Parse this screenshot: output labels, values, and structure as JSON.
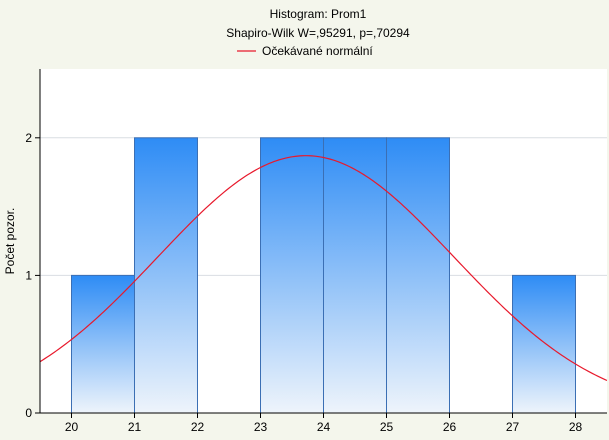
{
  "chart_data": {
    "type": "bar",
    "title": "Histogram: Prom1",
    "subtitle": "Shapiro-Wilk W=,95291, p=,70294",
    "xlabel": "",
    "ylabel": "Počet pozor.",
    "legend": {
      "placement": "top",
      "entries": [
        {
          "name": "Očekávané normální",
          "color": "#e8192c"
        }
      ]
    },
    "xlim": [
      19.5,
      28.5
    ],
    "ylim": [
      0,
      2.5
    ],
    "x_ticks": [
      20,
      21,
      22,
      23,
      24,
      25,
      26,
      27,
      28
    ],
    "y_ticks": [
      0,
      1,
      2
    ],
    "grid": true,
    "bins": [
      {
        "from": 20,
        "to": 21,
        "count": 1
      },
      {
        "from": 21,
        "to": 22,
        "count": 2
      },
      {
        "from": 22,
        "to": 23,
        "count": 0
      },
      {
        "from": 23,
        "to": 24,
        "count": 2
      },
      {
        "from": 24,
        "to": 25,
        "count": 2
      },
      {
        "from": 25,
        "to": 26,
        "count": 2
      },
      {
        "from": 26,
        "to": 27,
        "count": 0
      },
      {
        "from": 27,
        "to": 28,
        "count": 1
      }
    ],
    "normal_curve": {
      "mean": 23.72,
      "sd": 2.35,
      "peak": 1.87,
      "color": "#e8192c"
    },
    "colors": {
      "bar_top": "#2e8cf5",
      "bar_bottom": "#eef4fb",
      "bar_edge": "#3b6fb4",
      "background": "#f4f6ec",
      "plot_bg": "#ffffff"
    }
  }
}
